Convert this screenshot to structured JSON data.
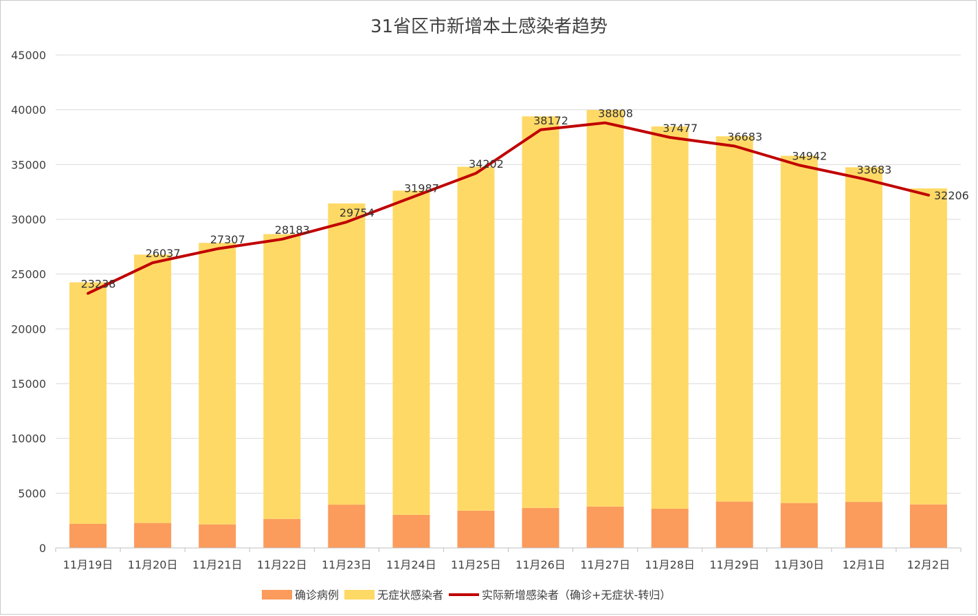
{
  "chart_data": {
    "type": "bar",
    "stacked": true,
    "title": "31省区市新增本土感染者趋势",
    "xlabel": "",
    "ylabel": "",
    "ylim": [
      0,
      45000
    ],
    "yticks": [
      0,
      5000,
      10000,
      15000,
      20000,
      25000,
      30000,
      35000,
      40000,
      45000
    ],
    "grid": true,
    "legend_position": "bottom",
    "categories": [
      "11月19日",
      "11月20日",
      "11月21日",
      "11月22日",
      "11月23日",
      "11月24日",
      "11月25日",
      "11月26日",
      "11月27日",
      "11月28日",
      "11月29日",
      "11月30日",
      "12月1日",
      "12月2日"
    ],
    "series": [
      {
        "name": "确诊病例",
        "kind": "bar",
        "color": "#fb9b5c",
        "values": [
          2200,
          2280,
          2150,
          2650,
          3950,
          3020,
          3400,
          3650,
          3780,
          3580,
          4230,
          4100,
          4200,
          3970
        ]
      },
      {
        "name": "无症状感染者",
        "kind": "bar",
        "color": "#ffd966",
        "values": [
          22050,
          24500,
          25700,
          26000,
          27500,
          29600,
          31400,
          35750,
          36200,
          34900,
          33350,
          31700,
          30550,
          28850
        ]
      },
      {
        "name": "实际新增感染者（确诊+无症状-转归）",
        "kind": "line",
        "color": "#c00000",
        "values": [
          23238,
          26037,
          27307,
          28183,
          29754,
          31987,
          34202,
          38172,
          38808,
          37477,
          36683,
          34942,
          33683,
          32206
        ]
      }
    ]
  }
}
